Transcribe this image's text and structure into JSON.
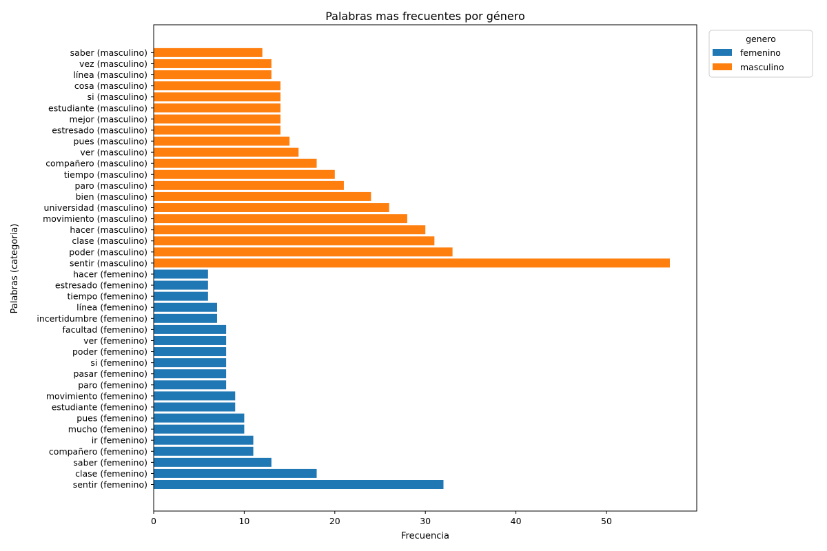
{
  "chart_data": {
    "type": "bar",
    "orientation": "horizontal",
    "title": "Palabras mas frecuentes por género",
    "xlabel": "Frecuencia",
    "ylabel": "Palabras (categoria)",
    "xlim": [
      0,
      60
    ],
    "x_ticks": [
      0,
      10,
      20,
      30,
      40,
      50
    ],
    "grid": false,
    "legend": {
      "title": "genero",
      "placement": "outside-top-right",
      "entries": [
        {
          "name": "femenino",
          "color": "#1f77b4"
        },
        {
          "name": "masculino",
          "color": "#ff7f0e"
        }
      ]
    },
    "categories": [
      "sentir (femenino)",
      "clase (femenino)",
      "saber (femenino)",
      "compañero (femenino)",
      "ir (femenino)",
      "mucho (femenino)",
      "pues (femenino)",
      "estudiante (femenino)",
      "movimiento (femenino)",
      "paro (femenino)",
      "pasar (femenino)",
      "si (femenino)",
      "poder (femenino)",
      "ver (femenino)",
      "facultad (femenino)",
      "incertidumbre (femenino)",
      "línea (femenino)",
      "tiempo (femenino)",
      "estresado (femenino)",
      "hacer (femenino)",
      "sentir (masculino)",
      "poder (masculino)",
      "clase (masculino)",
      "hacer (masculino)",
      "movimiento (masculino)",
      "universidad (masculino)",
      "bien (masculino)",
      "paro (masculino)",
      "tiempo (masculino)",
      "compañero (masculino)",
      "ver (masculino)",
      "pues (masculino)",
      "estresado (masculino)",
      "mejor (masculino)",
      "estudiante (masculino)",
      "si (masculino)",
      "cosa (masculino)",
      "línea (masculino)",
      "vez (masculino)",
      "saber (masculino)"
    ],
    "values": [
      32,
      18,
      13,
      11,
      11,
      10,
      10,
      9,
      9,
      8,
      8,
      8,
      8,
      8,
      8,
      7,
      7,
      6,
      6,
      6,
      57,
      33,
      31,
      30,
      28,
      26,
      24,
      21,
      20,
      18,
      16,
      15,
      14,
      14,
      14,
      14,
      14,
      13,
      13,
      12
    ],
    "groups": [
      "femenino",
      "femenino",
      "femenino",
      "femenino",
      "femenino",
      "femenino",
      "femenino",
      "femenino",
      "femenino",
      "femenino",
      "femenino",
      "femenino",
      "femenino",
      "femenino",
      "femenino",
      "femenino",
      "femenino",
      "femenino",
      "femenino",
      "femenino",
      "masculino",
      "masculino",
      "masculino",
      "masculino",
      "masculino",
      "masculino",
      "masculino",
      "masculino",
      "masculino",
      "masculino",
      "masculino",
      "masculino",
      "masculino",
      "masculino",
      "masculino",
      "masculino",
      "masculino",
      "masculino",
      "masculino",
      "masculino"
    ]
  }
}
